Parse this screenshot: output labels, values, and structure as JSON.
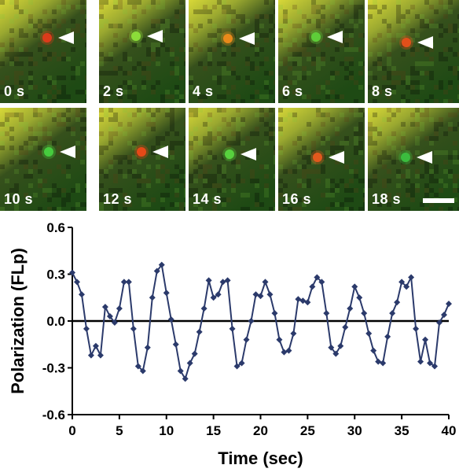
{
  "frames": [
    {
      "label": "0 s",
      "dot_color": "#e23a1a"
    },
    {
      "label": "2 s",
      "dot_color": "#8ee03a"
    },
    {
      "label": "4 s",
      "dot_color": "#f08c1a"
    },
    {
      "label": "6 s",
      "dot_color": "#5fd23a"
    },
    {
      "label": "8 s",
      "dot_color": "#e8501a"
    },
    {
      "label": "10 s",
      "dot_color": "#48d040"
    },
    {
      "label": "12 s",
      "dot_color": "#ec4a18"
    },
    {
      "label": "14 s",
      "dot_color": "#5ad640"
    },
    {
      "label": "16 s",
      "dot_color": "#e85a1e"
    },
    {
      "label": "18 s",
      "dot_color": "#3cc040"
    }
  ],
  "colors": {
    "series": "#2b3a6b",
    "background_green": "#1e4a14",
    "background_yellow": "#d8d838",
    "arrowhead": "#ffffff",
    "scale_bar": "#ffffff"
  },
  "chart_data": {
    "type": "line",
    "xlabel": "Time (sec)",
    "ylabel": "Polarization (FLp)",
    "xlim": [
      0,
      40
    ],
    "ylim": [
      -0.6,
      0.6
    ],
    "xticks": [
      0,
      5,
      10,
      15,
      20,
      25,
      30,
      35,
      40
    ],
    "yticks": [
      -0.6,
      -0.3,
      0.0,
      0.3,
      0.6
    ],
    "ytick_labels": [
      "-0.6",
      "-0.3",
      "0.0",
      "0.3",
      "0.6"
    ],
    "zero_line": true,
    "grid": false,
    "marker": "diamond",
    "x": [
      0,
      0.5,
      1,
      1.5,
      2,
      2.5,
      3,
      3.5,
      4,
      4.5,
      5,
      5.5,
      6,
      6.5,
      7,
      7.5,
      8,
      8.5,
      9,
      9.5,
      10,
      10.5,
      11,
      11.5,
      12,
      12.5,
      13,
      13.5,
      14,
      14.5,
      15,
      15.5,
      16,
      16.5,
      17,
      17.5,
      18,
      18.5,
      19,
      19.5,
      20,
      20.5,
      21,
      21.5,
      22,
      22.5,
      23,
      23.5,
      24,
      24.5,
      25,
      25.5,
      26,
      26.5,
      27,
      27.5,
      28,
      28.5,
      29,
      29.5,
      30,
      30.5,
      31,
      31.5,
      32,
      32.5,
      33,
      33.5,
      34,
      34.5,
      35,
      35.5,
      36,
      36.5,
      37,
      37.5,
      38,
      38.5,
      39,
      39.5,
      40
    ],
    "y": [
      0.31,
      0.25,
      0.17,
      -0.05,
      -0.22,
      -0.16,
      -0.22,
      0.09,
      0.03,
      -0.01,
      0.08,
      0.25,
      0.25,
      -0.05,
      -0.29,
      -0.32,
      -0.17,
      0.15,
      0.32,
      0.36,
      0.18,
      0.01,
      -0.15,
      -0.32,
      -0.37,
      -0.27,
      -0.21,
      -0.07,
      0.08,
      0.26,
      0.15,
      0.17,
      0.25,
      0.26,
      -0.05,
      -0.29,
      -0.27,
      -0.12,
      0.0,
      0.17,
      0.16,
      0.25,
      0.17,
      0.05,
      -0.12,
      -0.2,
      -0.19,
      -0.08,
      0.14,
      0.13,
      0.12,
      0.22,
      0.28,
      0.25,
      0.05,
      -0.17,
      -0.21,
      -0.16,
      -0.04,
      0.08,
      0.22,
      0.15,
      0.05,
      -0.08,
      -0.19,
      -0.26,
      -0.27,
      -0.1,
      0.05,
      0.12,
      0.25,
      0.22,
      0.28,
      -0.05,
      -0.26,
      -0.12,
      -0.27,
      -0.29,
      -0.01,
      0.04,
      0.11
    ]
  }
}
